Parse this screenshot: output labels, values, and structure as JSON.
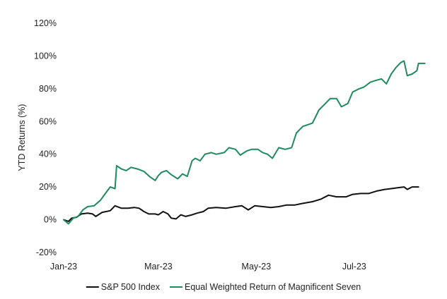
{
  "chart_data": {
    "type": "line",
    "title": "",
    "xlabel": "",
    "ylabel": "YTD Returns (%)",
    "ylim": [
      -20,
      120
    ],
    "xlim": [
      "2023-01-01",
      "2023-08-15"
    ],
    "grid": false,
    "legend_position": "bottom",
    "y_ticks": [
      {
        "value": -20,
        "label": "-20%"
      },
      {
        "value": 0,
        "label": "0%"
      },
      {
        "value": 20,
        "label": "20%"
      },
      {
        "value": 40,
        "label": "40%"
      },
      {
        "value": 60,
        "label": "60%"
      },
      {
        "value": 80,
        "label": "80%"
      },
      {
        "value": 100,
        "label": "100%"
      },
      {
        "value": 120,
        "label": "120%"
      }
    ],
    "x_ticks": [
      {
        "value": "2023-01-01",
        "label": "Jan-23"
      },
      {
        "value": "2023-03-01",
        "label": "Mar-23"
      },
      {
        "value": "2023-05-01",
        "label": "May-23"
      },
      {
        "value": "2023-07-01",
        "label": "Jul-23"
      }
    ],
    "series": [
      {
        "name": "S&P 500 Index",
        "color": "#111111",
        "points": [
          [
            "2023-01-01",
            0
          ],
          [
            "2023-01-04",
            -1
          ],
          [
            "2023-01-06",
            1
          ],
          [
            "2023-01-09",
            1.5
          ],
          [
            "2023-01-12",
            3.5
          ],
          [
            "2023-01-16",
            4
          ],
          [
            "2023-01-19",
            3.5
          ],
          [
            "2023-01-21",
            2
          ],
          [
            "2023-01-25",
            4.5
          ],
          [
            "2023-01-30",
            5.5
          ],
          [
            "2023-02-02",
            8.5
          ],
          [
            "2023-02-06",
            7
          ],
          [
            "2023-02-10",
            7
          ],
          [
            "2023-02-14",
            7.5
          ],
          [
            "2023-02-17",
            7
          ],
          [
            "2023-02-20",
            5
          ],
          [
            "2023-02-23",
            3.5
          ],
          [
            "2023-02-27",
            3.5
          ],
          [
            "2023-03-01",
            3
          ],
          [
            "2023-03-04",
            5
          ],
          [
            "2023-03-07",
            3.5
          ],
          [
            "2023-03-09",
            1
          ],
          [
            "2023-03-12",
            0.5
          ],
          [
            "2023-03-15",
            3
          ],
          [
            "2023-03-18",
            2
          ],
          [
            "2023-03-22",
            3
          ],
          [
            "2023-03-25",
            4
          ],
          [
            "2023-03-29",
            5
          ],
          [
            "2023-04-01",
            7
          ],
          [
            "2023-04-06",
            7.5
          ],
          [
            "2023-04-12",
            7
          ],
          [
            "2023-04-18",
            8
          ],
          [
            "2023-04-22",
            8.5
          ],
          [
            "2023-04-26",
            6
          ],
          [
            "2023-04-30",
            8.5
          ],
          [
            "2023-05-05",
            8
          ],
          [
            "2023-05-10",
            7.5
          ],
          [
            "2023-05-15",
            8
          ],
          [
            "2023-05-20",
            9
          ],
          [
            "2023-05-25",
            9
          ],
          [
            "2023-05-30",
            10
          ],
          [
            "2023-06-05",
            11
          ],
          [
            "2023-06-10",
            12.5
          ],
          [
            "2023-06-15",
            15
          ],
          [
            "2023-06-20",
            14
          ],
          [
            "2023-06-26",
            14
          ],
          [
            "2023-06-30",
            15.5
          ],
          [
            "2023-07-05",
            16
          ],
          [
            "2023-07-10",
            16
          ],
          [
            "2023-07-15",
            17.5
          ],
          [
            "2023-07-20",
            18.5
          ],
          [
            "2023-07-24",
            19
          ],
          [
            "2023-07-28",
            19.5
          ],
          [
            "2023-08-01",
            20
          ],
          [
            "2023-08-03",
            18.5
          ],
          [
            "2023-08-06",
            20
          ],
          [
            "2023-08-10",
            20
          ]
        ]
      },
      {
        "name": "Equal Weighted Return of Magnificent Seven",
        "color": "#1e8a5e",
        "points": [
          [
            "2023-01-01",
            0
          ],
          [
            "2023-01-04",
            -2.5
          ],
          [
            "2023-01-07",
            1
          ],
          [
            "2023-01-10",
            2
          ],
          [
            "2023-01-13",
            6
          ],
          [
            "2023-01-16",
            8
          ],
          [
            "2023-01-20",
            8.5
          ],
          [
            "2023-01-24",
            12
          ],
          [
            "2023-01-27",
            16
          ],
          [
            "2023-01-30",
            20
          ],
          [
            "2023-02-02",
            19
          ],
          [
            "2023-02-03",
            33
          ],
          [
            "2023-02-06",
            31
          ],
          [
            "2023-02-09",
            30
          ],
          [
            "2023-02-12",
            32
          ],
          [
            "2023-02-16",
            31
          ],
          [
            "2023-02-20",
            29.5
          ],
          [
            "2023-02-24",
            26
          ],
          [
            "2023-02-27",
            24
          ],
          [
            "2023-03-01",
            27
          ],
          [
            "2023-03-03",
            29
          ],
          [
            "2023-03-06",
            30
          ],
          [
            "2023-03-09",
            27.5
          ],
          [
            "2023-03-13",
            25
          ],
          [
            "2023-03-16",
            28
          ],
          [
            "2023-03-19",
            26.5
          ],
          [
            "2023-03-22",
            36
          ],
          [
            "2023-03-24",
            37.5
          ],
          [
            "2023-03-27",
            36
          ],
          [
            "2023-03-30",
            40
          ],
          [
            "2023-04-03",
            41
          ],
          [
            "2023-04-06",
            40
          ],
          [
            "2023-04-11",
            41
          ],
          [
            "2023-04-14",
            44
          ],
          [
            "2023-04-18",
            43
          ],
          [
            "2023-04-21",
            39.5
          ],
          [
            "2023-04-25",
            42
          ],
          [
            "2023-04-28",
            43
          ],
          [
            "2023-05-02",
            43
          ],
          [
            "2023-05-05",
            41
          ],
          [
            "2023-05-08",
            40
          ],
          [
            "2023-05-11",
            37.5
          ],
          [
            "2023-05-15",
            44
          ],
          [
            "2023-05-19",
            43
          ],
          [
            "2023-05-23",
            44
          ],
          [
            "2023-05-26",
            53
          ],
          [
            "2023-05-30",
            57
          ],
          [
            "2023-06-02",
            58
          ],
          [
            "2023-06-05",
            59
          ],
          [
            "2023-06-09",
            67
          ],
          [
            "2023-06-13",
            71
          ],
          [
            "2023-06-16",
            74
          ],
          [
            "2023-06-20",
            74
          ],
          [
            "2023-06-23",
            69
          ],
          [
            "2023-06-27",
            71
          ],
          [
            "2023-06-30",
            78
          ],
          [
            "2023-07-04",
            80
          ],
          [
            "2023-07-07",
            81
          ],
          [
            "2023-07-11",
            84
          ],
          [
            "2023-07-14",
            85
          ],
          [
            "2023-07-18",
            86
          ],
          [
            "2023-07-21",
            83
          ],
          [
            "2023-07-24",
            89
          ],
          [
            "2023-07-27",
            93
          ],
          [
            "2023-07-30",
            96
          ],
          [
            "2023-08-01",
            97
          ],
          [
            "2023-08-03",
            88
          ],
          [
            "2023-08-06",
            89
          ],
          [
            "2023-08-09",
            91
          ],
          [
            "2023-08-10",
            95.5
          ],
          [
            "2023-08-14",
            95.5
          ]
        ]
      }
    ]
  }
}
